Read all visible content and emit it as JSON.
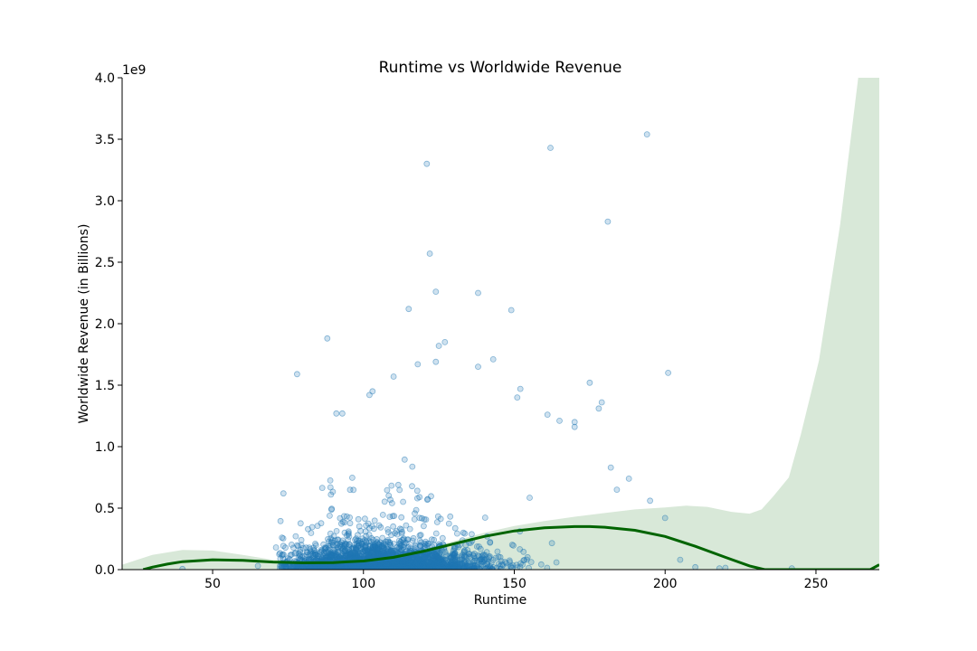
{
  "chart_data": {
    "type": "scatter",
    "title": "Runtime vs Worldwide Revenue",
    "xlabel": "Runtime",
    "ylabel": "Worldwide Revenue (in Billions)",
    "y_scale_note": "1e9",
    "xlim": [
      20,
      271
    ],
    "ylim": [
      0,
      4000000000
    ],
    "x_ticks": [
      50,
      100,
      150,
      200,
      250
    ],
    "y_ticks": [
      0,
      500000000,
      1000000000,
      1500000000,
      2000000000,
      2500000000,
      3000000000,
      3500000000,
      4000000000
    ],
    "y_tick_labels": [
      "0.0",
      "0.5",
      "1.0",
      "1.5",
      "2.0",
      "2.5",
      "3.0",
      "3.5",
      "4.0"
    ],
    "grid": false,
    "colors": {
      "points": "#1f77b4",
      "trend": "#006400",
      "band": "#d8e8d8"
    },
    "outliers": [
      {
        "x": 194,
        "y": 3540000000
      },
      {
        "x": 162,
        "y": 3430000000
      },
      {
        "x": 121,
        "y": 3300000000
      },
      {
        "x": 181,
        "y": 2830000000
      },
      {
        "x": 122,
        "y": 2570000000
      },
      {
        "x": 124,
        "y": 2260000000
      },
      {
        "x": 138,
        "y": 2250000000
      },
      {
        "x": 115,
        "y": 2120000000
      },
      {
        "x": 149,
        "y": 2110000000
      },
      {
        "x": 88,
        "y": 1880000000
      },
      {
        "x": 127,
        "y": 1850000000
      },
      {
        "x": 125,
        "y": 1820000000
      },
      {
        "x": 143,
        "y": 1710000000
      },
      {
        "x": 124,
        "y": 1690000000
      },
      {
        "x": 118,
        "y": 1670000000
      },
      {
        "x": 138,
        "y": 1650000000
      },
      {
        "x": 78,
        "y": 1590000000
      },
      {
        "x": 201,
        "y": 1600000000
      },
      {
        "x": 110,
        "y": 1570000000
      },
      {
        "x": 175,
        "y": 1520000000
      },
      {
        "x": 152,
        "y": 1470000000
      },
      {
        "x": 103,
        "y": 1450000000
      },
      {
        "x": 102,
        "y": 1420000000
      },
      {
        "x": 151,
        "y": 1400000000
      },
      {
        "x": 179,
        "y": 1360000000
      },
      {
        "x": 178,
        "y": 1310000000
      },
      {
        "x": 91,
        "y": 1270000000
      },
      {
        "x": 93,
        "y": 1270000000
      },
      {
        "x": 170,
        "y": 1200000000
      },
      {
        "x": 165,
        "y": 1210000000
      },
      {
        "x": 170,
        "y": 1160000000
      },
      {
        "x": 161,
        "y": 1260000000
      },
      {
        "x": 182,
        "y": 830000000
      },
      {
        "x": 188,
        "y": 740000000
      },
      {
        "x": 184,
        "y": 650000000
      },
      {
        "x": 195,
        "y": 560000000
      },
      {
        "x": 200,
        "y": 420000000
      },
      {
        "x": 242,
        "y": 10000000
      },
      {
        "x": 220,
        "y": 15000000
      },
      {
        "x": 218,
        "y": 10000000
      },
      {
        "x": 210,
        "y": 20000000
      },
      {
        "x": 205,
        "y": 80000000
      },
      {
        "x": 40,
        "y": 5000000
      },
      {
        "x": 65,
        "y": 30000000
      },
      {
        "x": 71,
        "y": 180000000
      },
      {
        "x": 73,
        "y": 260000000
      }
    ],
    "trend_line": [
      {
        "x": 27,
        "y": 0
      },
      {
        "x": 30,
        "y": 20000000
      },
      {
        "x": 35,
        "y": 45000000
      },
      {
        "x": 40,
        "y": 65000000
      },
      {
        "x": 50,
        "y": 80000000
      },
      {
        "x": 60,
        "y": 75000000
      },
      {
        "x": 70,
        "y": 62000000
      },
      {
        "x": 80,
        "y": 55000000
      },
      {
        "x": 90,
        "y": 57000000
      },
      {
        "x": 100,
        "y": 70000000
      },
      {
        "x": 110,
        "y": 100000000
      },
      {
        "x": 120,
        "y": 150000000
      },
      {
        "x": 130,
        "y": 210000000
      },
      {
        "x": 140,
        "y": 270000000
      },
      {
        "x": 150,
        "y": 315000000
      },
      {
        "x": 160,
        "y": 340000000
      },
      {
        "x": 170,
        "y": 350000000
      },
      {
        "x": 175,
        "y": 350000000
      },
      {
        "x": 180,
        "y": 345000000
      },
      {
        "x": 190,
        "y": 320000000
      },
      {
        "x": 200,
        "y": 270000000
      },
      {
        "x": 210,
        "y": 190000000
      },
      {
        "x": 220,
        "y": 100000000
      },
      {
        "x": 228,
        "y": 30000000
      },
      {
        "x": 233,
        "y": 0
      },
      {
        "x": 268,
        "y": 0
      },
      {
        "x": 271,
        "y": 40000000
      }
    ],
    "confidence_upper": [
      {
        "x": 20,
        "y": 40000000
      },
      {
        "x": 25,
        "y": 80000000
      },
      {
        "x": 30,
        "y": 120000000
      },
      {
        "x": 40,
        "y": 160000000
      },
      {
        "x": 50,
        "y": 155000000
      },
      {
        "x": 60,
        "y": 120000000
      },
      {
        "x": 70,
        "y": 80000000
      },
      {
        "x": 80,
        "y": 70000000
      },
      {
        "x": 90,
        "y": 68000000
      },
      {
        "x": 100,
        "y": 82000000
      },
      {
        "x": 110,
        "y": 112000000
      },
      {
        "x": 120,
        "y": 165000000
      },
      {
        "x": 130,
        "y": 232000000
      },
      {
        "x": 140,
        "y": 300000000
      },
      {
        "x": 150,
        "y": 355000000
      },
      {
        "x": 160,
        "y": 395000000
      },
      {
        "x": 170,
        "y": 430000000
      },
      {
        "x": 180,
        "y": 460000000
      },
      {
        "x": 190,
        "y": 490000000
      },
      {
        "x": 200,
        "y": 505000000
      },
      {
        "x": 207,
        "y": 520000000
      },
      {
        "x": 214,
        "y": 510000000
      },
      {
        "x": 222,
        "y": 470000000
      },
      {
        "x": 228,
        "y": 455000000
      },
      {
        "x": 232,
        "y": 490000000
      },
      {
        "x": 236,
        "y": 600000000
      },
      {
        "x": 241,
        "y": 750000000
      },
      {
        "x": 245,
        "y": 1100000000
      },
      {
        "x": 251,
        "y": 1700000000
      },
      {
        "x": 258,
        "y": 2800000000
      },
      {
        "x": 264,
        "y": 4000000000
      },
      {
        "x": 271,
        "y": 4000000000
      }
    ],
    "confidence_lower": [
      {
        "x": 271,
        "y": 0
      },
      {
        "x": 20,
        "y": 0
      }
    ],
    "dense_cluster": {
      "x_center": 105,
      "x_spread": 18,
      "y_center": 120000000,
      "y_spread": 110000000,
      "count": 2600,
      "seed": 12
    }
  }
}
